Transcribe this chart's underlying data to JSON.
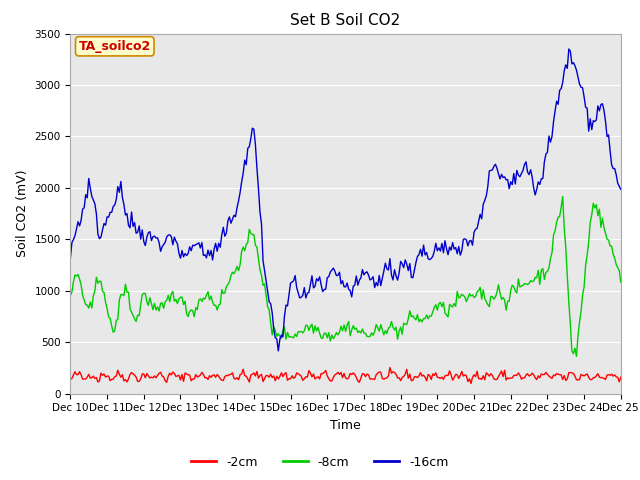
{
  "title": "Set B Soil CO2",
  "ylabel": "Soil CO2 (mV)",
  "xlabel": "Time",
  "annotation_label": "TA_soilco2",
  "annotation_color": "#cc0000",
  "annotation_bg": "#ffffcc",
  "annotation_border": "#cc8800",
  "ylim": [
    0,
    3500
  ],
  "xlim": [
    0,
    360
  ],
  "x_tick_labels": [
    "Dec 10",
    "Dec 11",
    "Dec 12",
    "Dec 13",
    "Dec 14",
    "Dec 15",
    "Dec 16",
    "Dec 17",
    "Dec 18",
    "Dec 19",
    "Dec 20",
    "Dec 21",
    "Dec 22",
    "Dec 23",
    "Dec 24",
    "Dec 25"
  ],
  "x_tick_positions": [
    0,
    24,
    48,
    72,
    96,
    120,
    144,
    168,
    192,
    216,
    240,
    264,
    288,
    312,
    336,
    360
  ],
  "plot_bg": "#e8e8e8",
  "fig_bg": "#ffffff",
  "line_colors": [
    "#ff0000",
    "#00cc00",
    "#0000cc"
  ],
  "line_labels": [
    "-2cm",
    "-8cm",
    "-16cm"
  ],
  "line_width": 1.0,
  "yticks": [
    0,
    500,
    1000,
    1500,
    2000,
    2500,
    3000,
    3500
  ],
  "title_fontsize": 11,
  "label_fontsize": 9,
  "tick_fontsize": 7.5,
  "legend_fontsize": 9
}
